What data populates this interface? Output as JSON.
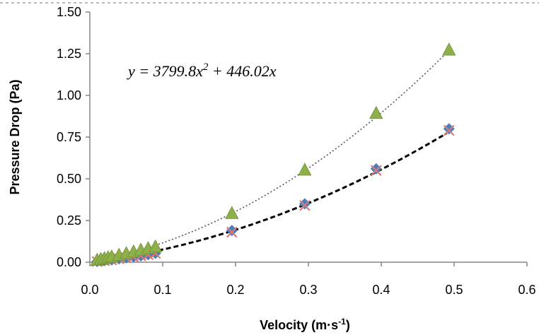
{
  "chart_data": {
    "type": "scatter",
    "title": "",
    "xlabel": "Velocity (m·s",
    "xlabel_sup": "-1",
    "xlabel_end": ")",
    "ylabel": "Pressure Drop (Pa)",
    "xlim": [
      0,
      0.6
    ],
    "ylim": [
      0,
      1.5
    ],
    "xticks": [
      0.0,
      0.1,
      0.2,
      0.3,
      0.4,
      0.5,
      0.6
    ],
    "xtick_labels": [
      "0.0",
      "0.1",
      "0.2",
      "0.3",
      "0.4",
      "0.5",
      "0.6"
    ],
    "yticks": [
      0.0,
      0.25,
      0.5,
      0.75,
      1.0,
      1.25,
      1.5
    ],
    "ytick_labels": [
      "0.00",
      "0.25",
      "0.50",
      "0.75",
      "1.00",
      "1.25",
      "1.50"
    ],
    "grid": false,
    "annotation": {
      "text": "y = 3799.8x",
      "exp": "2",
      "rest": " + 446.02x",
      "anchor": [
        0.09,
        1.14
      ]
    },
    "series": [
      {
        "name": "triangle",
        "marker": "triangle",
        "color": "#8DB04A",
        "x": [
          0.01,
          0.015,
          0.02,
          0.025,
          0.03,
          0.04,
          0.05,
          0.06,
          0.07,
          0.08,
          0.09,
          0.195,
          0.295,
          0.393,
          0.493
        ],
        "y": [
          0.01,
          0.015,
          0.02,
          0.025,
          0.03,
          0.04,
          0.05,
          0.06,
          0.07,
          0.08,
          0.09,
          0.29,
          0.55,
          0.89,
          1.27
        ]
      },
      {
        "name": "diamond",
        "marker": "diamond",
        "color": "#4A7EBB",
        "x": [
          0.01,
          0.02,
          0.03,
          0.04,
          0.05,
          0.06,
          0.07,
          0.08,
          0.09,
          0.195,
          0.295,
          0.393,
          0.493
        ],
        "y": [
          0.004,
          0.009,
          0.014,
          0.02,
          0.026,
          0.032,
          0.038,
          0.045,
          0.053,
          0.19,
          0.35,
          0.56,
          0.8
        ]
      },
      {
        "name": "cross",
        "marker": "x",
        "color": "#D67A7A",
        "x": [
          0.01,
          0.02,
          0.03,
          0.04,
          0.05,
          0.06,
          0.07,
          0.08,
          0.09,
          0.195,
          0.295,
          0.393,
          0.493
        ],
        "y": [
          0.004,
          0.009,
          0.014,
          0.02,
          0.026,
          0.032,
          0.038,
          0.045,
          0.053,
          0.18,
          0.34,
          0.55,
          0.79
        ]
      }
    ],
    "trendlines": [
      {
        "name": "triangle-fit",
        "style": "dotted",
        "color": "#555555",
        "a": 3.6,
        "b": 0.8
      },
      {
        "name": "diamond-fit",
        "style": "dashed",
        "color": "#000000",
        "a": 2.1,
        "b": 0.55
      }
    ]
  }
}
